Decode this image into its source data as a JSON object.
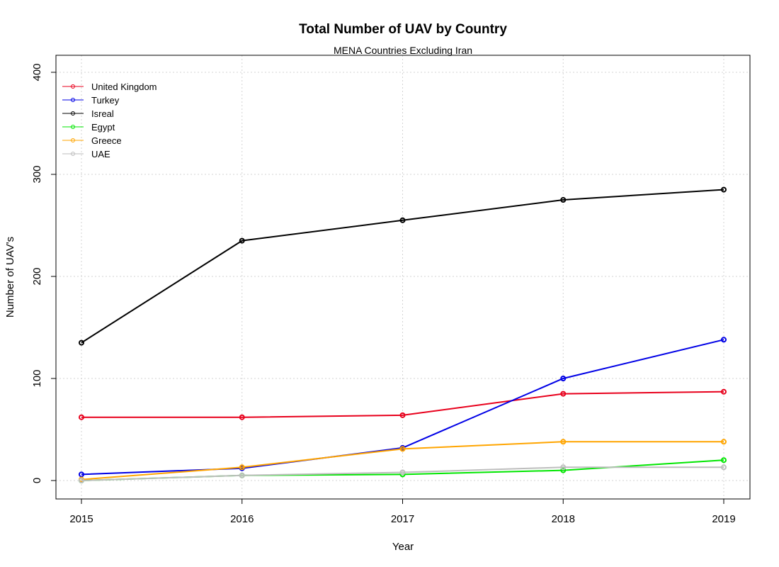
{
  "chart_data": {
    "type": "line",
    "title": "Total Number of UAV by Country",
    "subtitle": "MENA Countries Excluding Iran",
    "xlabel": "Year",
    "ylabel": "Number of UAV's",
    "x": [
      2015,
      2016,
      2017,
      2018,
      2019
    ],
    "x_tick_labels": [
      "2015",
      "2016",
      "2017",
      "2018",
      "2019"
    ],
    "y_ticks": [
      0,
      100,
      200,
      300,
      400
    ],
    "y_tick_labels": [
      "0",
      "100",
      "200",
      "300",
      "400"
    ],
    "ylim": [
      -15,
      400
    ],
    "grid": true,
    "legend_position": "top-left",
    "series": [
      {
        "name": "United Kingdom",
        "color": "#e8001c",
        "values": [
          62,
          62,
          64,
          85,
          87
        ]
      },
      {
        "name": "Turkey",
        "color": "#0000e6",
        "values": [
          6,
          12,
          32,
          100,
          138
        ]
      },
      {
        "name": "Isreal",
        "color": "#000000",
        "values": [
          135,
          235,
          255,
          275,
          285
        ]
      },
      {
        "name": "Egypt",
        "color": "#00e600",
        "values": [
          0,
          5,
          6,
          10,
          20
        ]
      },
      {
        "name": "Greece",
        "color": "#ffa500",
        "values": [
          1,
          13,
          31,
          38,
          38
        ]
      },
      {
        "name": "UAE",
        "color": "#bebebe",
        "values": [
          0,
          5,
          8,
          13,
          13
        ]
      }
    ]
  }
}
